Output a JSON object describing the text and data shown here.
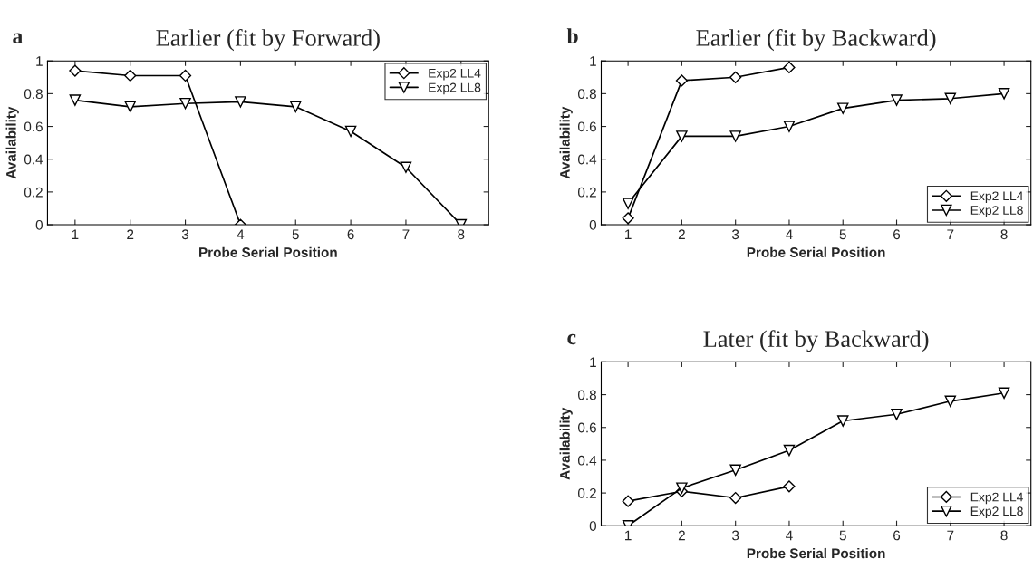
{
  "chart_data": [
    {
      "type": "line",
      "title": "Earlier (fit by Forward)",
      "annotations": [
        "a"
      ],
      "xlabel": "Probe Serial Position",
      "ylabel": "Availability",
      "x": [
        1,
        2,
        3,
        4,
        5,
        6,
        7,
        8
      ],
      "xlim": [
        0.5,
        8.5
      ],
      "xticks": [
        1,
        2,
        3,
        4,
        5,
        6,
        7,
        8
      ],
      "ylim": [
        0,
        1
      ],
      "yticks": [
        0,
        0.2,
        0.4,
        0.6,
        0.8,
        1
      ],
      "legend": "top right",
      "grid": false,
      "series": [
        {
          "name": "Exp2 LL4",
          "color": "#000000",
          "marker": "diamond",
          "x": [
            1,
            2,
            3,
            4
          ],
          "values": [
            0.94,
            0.91,
            0.91,
            0.0
          ]
        },
        {
          "name": "Exp2 LL8",
          "color": "#000000",
          "marker": "triangle",
          "values": [
            0.76,
            0.72,
            0.74,
            0.75,
            0.72,
            0.57,
            0.35,
            0.0
          ]
        }
      ]
    },
    {
      "type": "line",
      "title": "Earlier (fit by Backward)",
      "annotations": [
        "b"
      ],
      "xlabel": "Probe Serial Position",
      "ylabel": "Availability",
      "x": [
        1,
        2,
        3,
        4,
        5,
        6,
        7,
        8
      ],
      "xlim": [
        0.5,
        8.5
      ],
      "xticks": [
        1,
        2,
        3,
        4,
        5,
        6,
        7,
        8
      ],
      "ylim": [
        0,
        1
      ],
      "yticks": [
        0,
        0.2,
        0.4,
        0.6,
        0.8,
        1
      ],
      "legend": "bottom right",
      "grid": false,
      "series": [
        {
          "name": "Exp2 LL4",
          "color": "#000000",
          "marker": "diamond",
          "x": [
            1,
            2,
            3,
            4
          ],
          "values": [
            0.04,
            0.88,
            0.9,
            0.96
          ]
        },
        {
          "name": "Exp2 LL8",
          "color": "#000000",
          "marker": "triangle",
          "values": [
            0.13,
            0.54,
            0.54,
            0.6,
            0.71,
            0.76,
            0.77,
            0.8
          ]
        }
      ]
    },
    {
      "type": "line",
      "title": "Later (fit by Backward)",
      "annotations": [
        "c"
      ],
      "xlabel": "Probe Serial Position",
      "ylabel": "Availability",
      "x": [
        1,
        2,
        3,
        4,
        5,
        6,
        7,
        8
      ],
      "xlim": [
        0.5,
        8.5
      ],
      "xticks": [
        1,
        2,
        3,
        4,
        5,
        6,
        7,
        8
      ],
      "ylim": [
        0,
        1
      ],
      "yticks": [
        0,
        0.2,
        0.4,
        0.6,
        0.8,
        1
      ],
      "legend": "bottom right",
      "grid": false,
      "series": [
        {
          "name": "Exp2 LL4",
          "color": "#000000",
          "marker": "diamond",
          "x": [
            1,
            2,
            3,
            4
          ],
          "values": [
            0.15,
            0.21,
            0.17,
            0.24
          ]
        },
        {
          "name": "Exp2 LL8",
          "color": "#000000",
          "marker": "triangle",
          "values": [
            0.0,
            0.23,
            0.34,
            0.46,
            0.64,
            0.68,
            0.76,
            0.81
          ]
        }
      ]
    }
  ]
}
